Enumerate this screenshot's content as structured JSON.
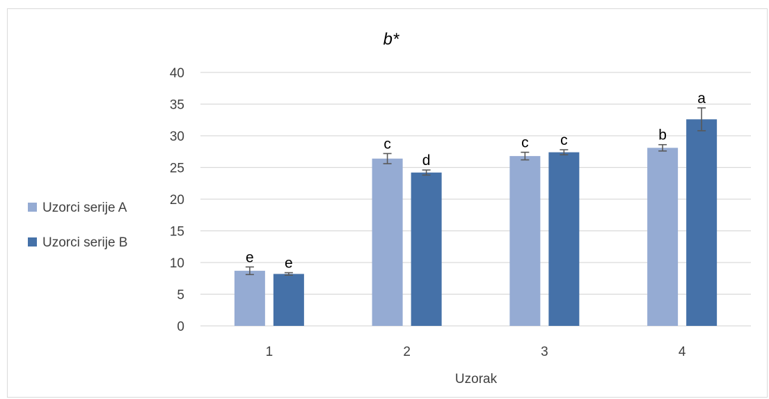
{
  "chart_data": {
    "type": "bar",
    "title": "b*",
    "xlabel": "Uzorak",
    "ylabel": "",
    "ylim": [
      0,
      40
    ],
    "yticks": [
      0,
      5,
      10,
      15,
      20,
      25,
      30,
      35,
      40
    ],
    "categories": [
      "1",
      "2",
      "3",
      "4"
    ],
    "grid": true,
    "legend": "left",
    "series": [
      {
        "name": "Uzorci serije A",
        "color": "#95abd3",
        "values": [
          8.7,
          26.4,
          26.8,
          28.1
        ],
        "errors": [
          0.6,
          0.8,
          0.6,
          0.5
        ],
        "labels": [
          "e",
          "c",
          "c",
          "b"
        ]
      },
      {
        "name": "Uzorci serije B",
        "color": "#4571a8",
        "values": [
          8.2,
          24.2,
          27.4,
          32.6
        ],
        "errors": [
          0.2,
          0.4,
          0.4,
          1.8
        ],
        "labels": [
          "e",
          "d",
          "c",
          "a"
        ]
      }
    ]
  }
}
